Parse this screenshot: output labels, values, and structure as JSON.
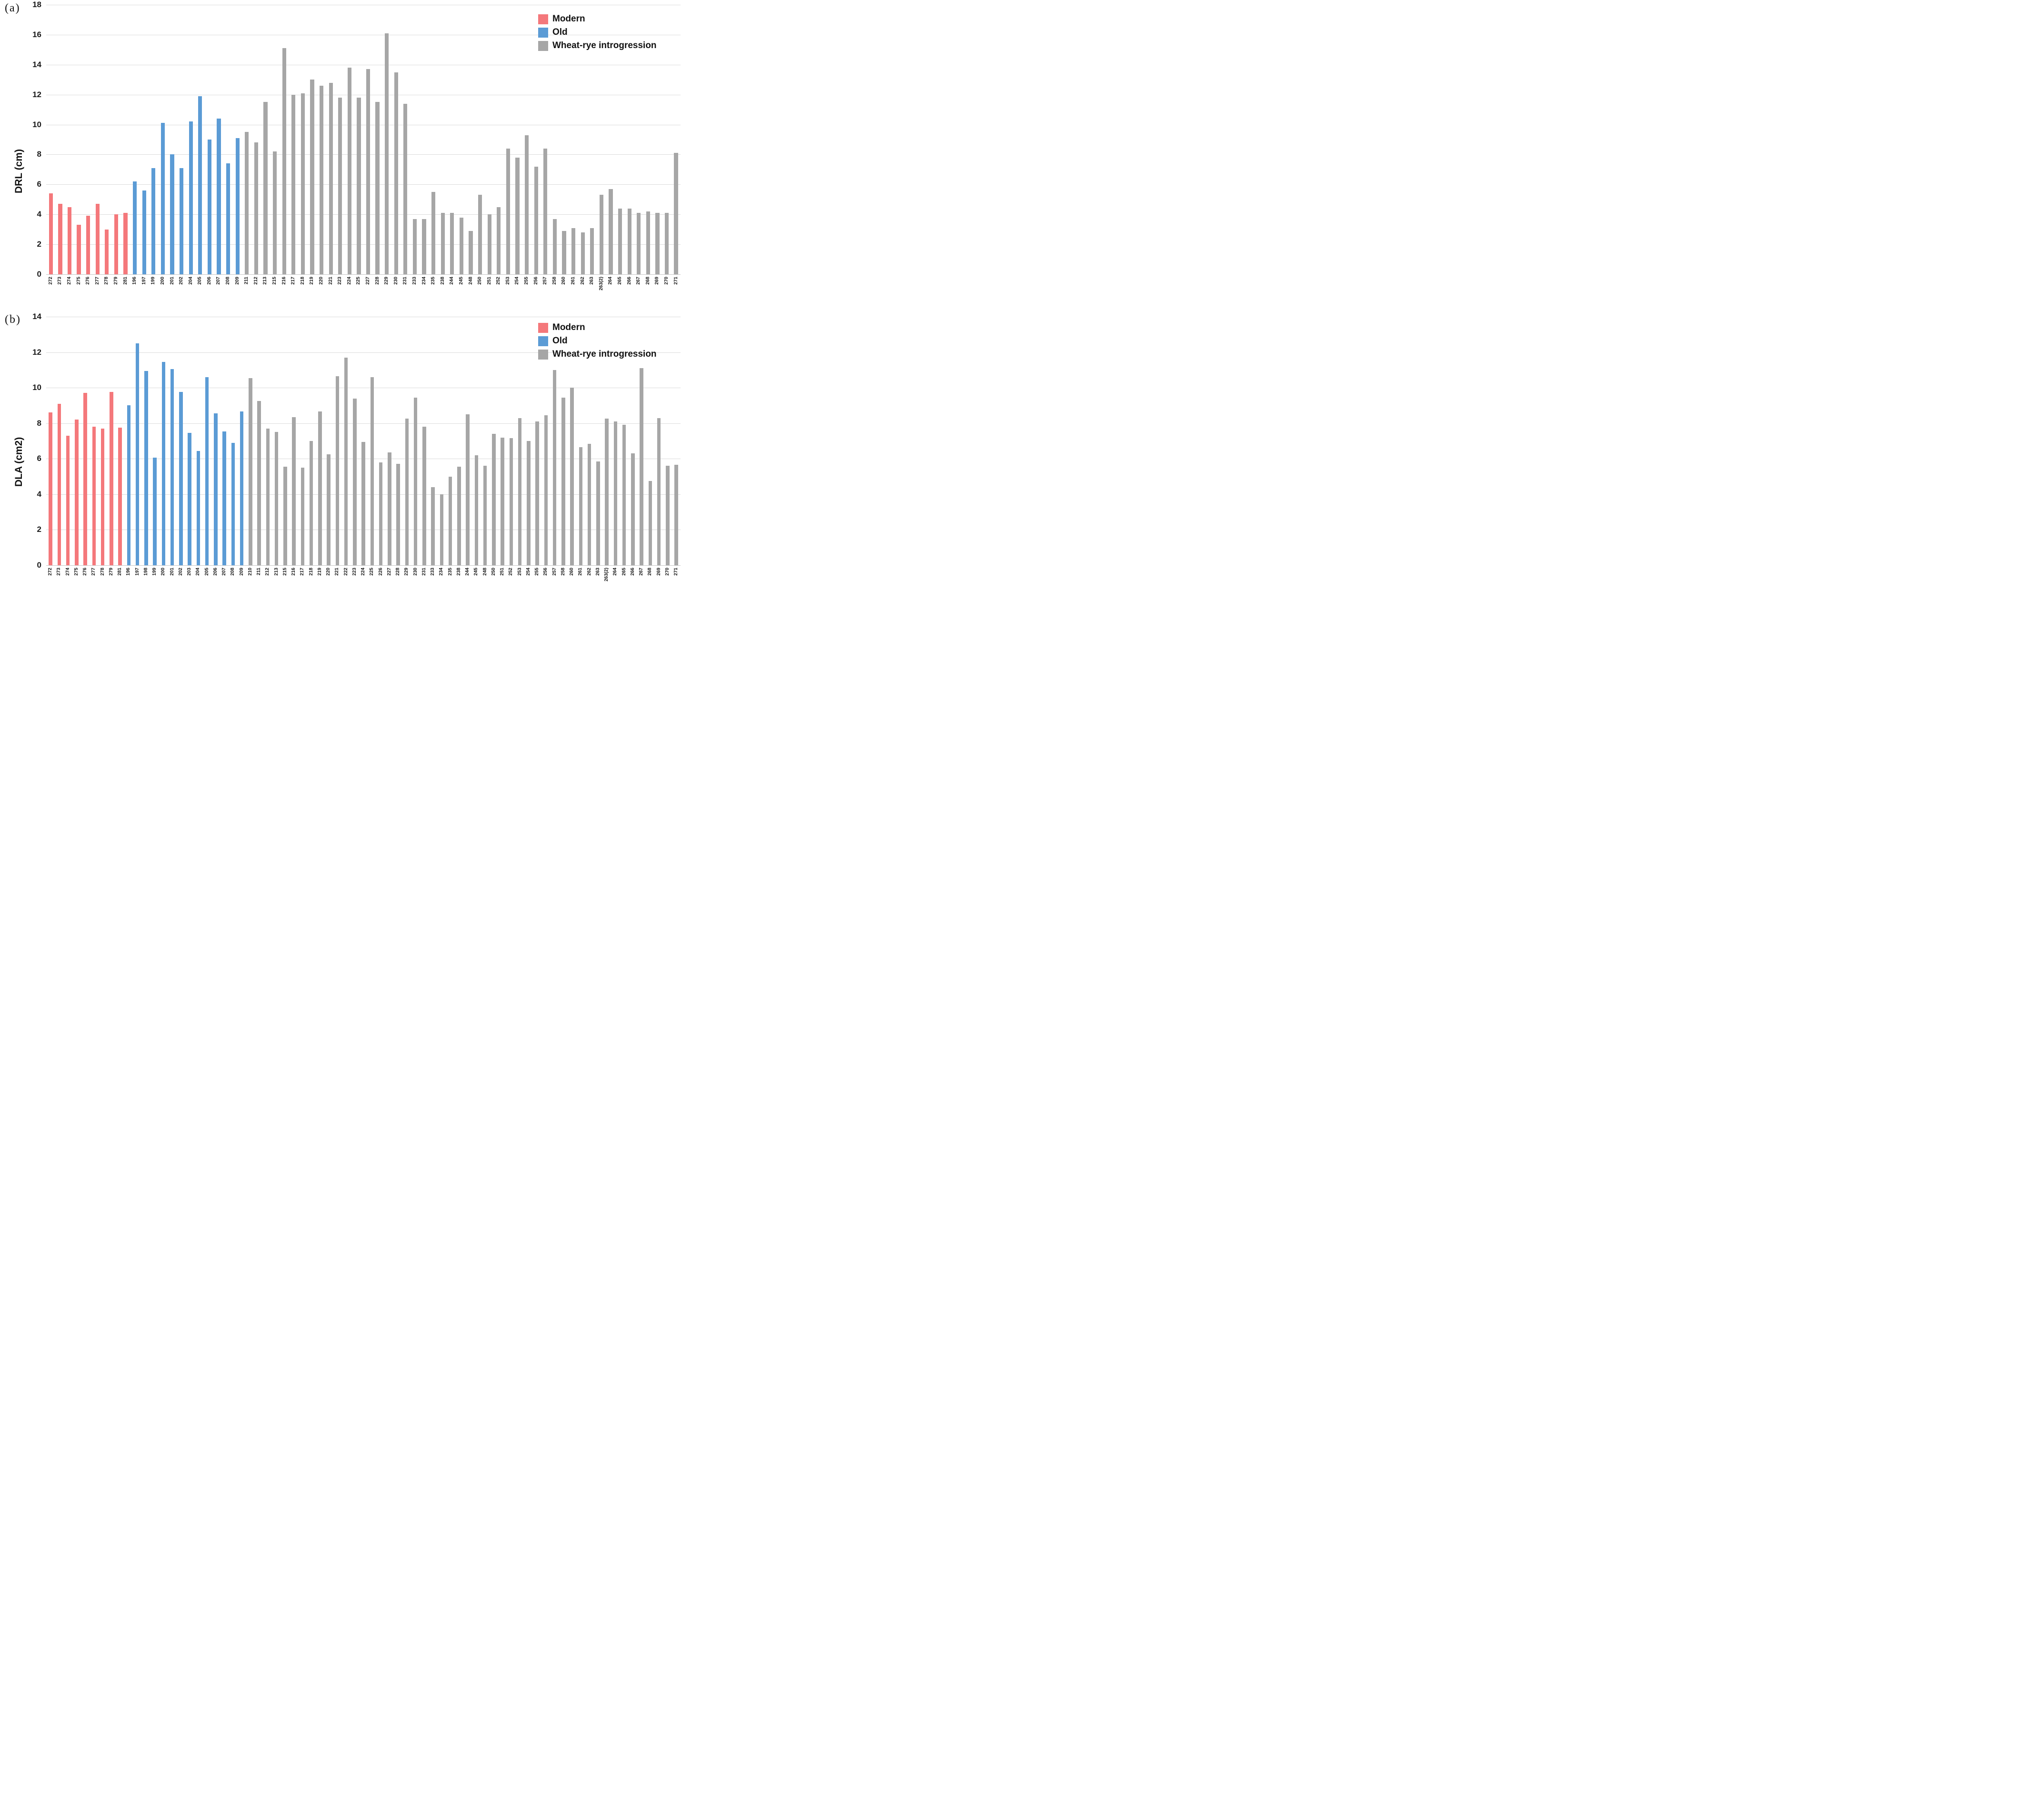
{
  "legend": {
    "items": [
      {
        "key": "modern",
        "label": "Modern",
        "color": "#F4787B"
      },
      {
        "key": "old",
        "label": "Old",
        "color": "#5B9BD5"
      },
      {
        "key": "introgression",
        "label": "Wheat-rye introgression",
        "color": "#A6A6A6"
      }
    ]
  },
  "chart_data": [
    {
      "type": "bar",
      "panel_label": "(a)",
      "ylabel": "DRL (cm)",
      "ylim": [
        0,
        18
      ],
      "ytick_step": 2,
      "grid": true,
      "legend_position": "top-right",
      "categories": [
        "272",
        "273",
        "274",
        "275",
        "276",
        "277",
        "278",
        "279",
        "281",
        "196",
        "197",
        "199",
        "200",
        "201",
        "202",
        "204",
        "205",
        "206",
        "207",
        "208",
        "209",
        "211",
        "212",
        "213",
        "215",
        "216",
        "217",
        "218",
        "219",
        "220",
        "221",
        "223",
        "224",
        "225",
        "227",
        "228",
        "229",
        "230",
        "231",
        "233",
        "234",
        "235",
        "238",
        "244",
        "245",
        "248",
        "250",
        "251",
        "252",
        "253",
        "254",
        "255",
        "256",
        "257",
        "258",
        "260",
        "261",
        "262",
        "263",
        "263(2)",
        "264",
        "265",
        "266",
        "267",
        "268",
        "269",
        "270",
        "271"
      ],
      "groups": [
        "modern",
        "modern",
        "modern",
        "modern",
        "modern",
        "modern",
        "modern",
        "modern",
        "modern",
        "old",
        "old",
        "old",
        "old",
        "old",
        "old",
        "old",
        "old",
        "old",
        "old",
        "old",
        "old",
        "introgression",
        "introgression",
        "introgression",
        "introgression",
        "introgression",
        "introgression",
        "introgression",
        "introgression",
        "introgression",
        "introgression",
        "introgression",
        "introgression",
        "introgression",
        "introgression",
        "introgression",
        "introgression",
        "introgression",
        "introgression",
        "introgression",
        "introgression",
        "introgression",
        "introgression",
        "introgression",
        "introgression",
        "introgression",
        "introgression",
        "introgression",
        "introgression",
        "introgression",
        "introgression",
        "introgression",
        "introgression",
        "introgression",
        "introgression",
        "introgression",
        "introgression",
        "introgression",
        "introgression",
        "introgression",
        "introgression",
        "introgression",
        "introgression",
        "introgression",
        "introgression",
        "introgression",
        "introgression",
        "introgression"
      ],
      "values": [
        5.4,
        4.7,
        4.5,
        3.3,
        3.9,
        4.7,
        3.0,
        4.0,
        4.1,
        6.2,
        5.6,
        7.1,
        10.1,
        8.0,
        7.1,
        10.2,
        11.9,
        9.0,
        10.4,
        7.4,
        9.1,
        9.5,
        8.8,
        11.5,
        8.2,
        15.1,
        12.0,
        12.1,
        13.0,
        12.6,
        12.8,
        11.8,
        13.8,
        11.8,
        13.7,
        11.5,
        16.1,
        13.5,
        11.4,
        3.7,
        3.7,
        5.5,
        4.1,
        4.1,
        3.8,
        2.9,
        5.3,
        4.0,
        4.5,
        8.4,
        7.8,
        9.3,
        7.2,
        8.4,
        3.7,
        2.9,
        3.1,
        2.8,
        3.1,
        5.3,
        5.7,
        4.4,
        4.4,
        4.1,
        4.2,
        4.1,
        4.1,
        8.1
      ]
    },
    {
      "type": "bar",
      "panel_label": "(b)",
      "ylabel": "DLA (cm2)",
      "ylim": [
        0,
        14
      ],
      "ytick_step": 2,
      "grid": true,
      "legend_position": "top-right",
      "categories": [
        "272",
        "273",
        "274",
        "275",
        "276",
        "277",
        "278",
        "279",
        "281",
        "196",
        "197",
        "198",
        "199",
        "200",
        "201",
        "202",
        "203",
        "204",
        "205",
        "206",
        "207",
        "208",
        "209",
        "210",
        "211",
        "212",
        "213",
        "215",
        "216",
        "217",
        "218",
        "219",
        "220",
        "221",
        "222",
        "223",
        "224",
        "225",
        "226",
        "227",
        "228",
        "229",
        "230",
        "231",
        "233",
        "234",
        "235",
        "238",
        "244",
        "245",
        "248",
        "250",
        "251",
        "252",
        "253",
        "254",
        "255",
        "256",
        "257",
        "258",
        "260",
        "261",
        "262",
        "263",
        "263(2)",
        "264",
        "265",
        "266",
        "267",
        "268",
        "269",
        "270",
        "271"
      ],
      "groups": [
        "modern",
        "modern",
        "modern",
        "modern",
        "modern",
        "modern",
        "modern",
        "modern",
        "modern",
        "old",
        "old",
        "old",
        "old",
        "old",
        "old",
        "old",
        "old",
        "old",
        "old",
        "old",
        "old",
        "old",
        "old",
        "introgression",
        "introgression",
        "introgression",
        "introgression",
        "introgression",
        "introgression",
        "introgression",
        "introgression",
        "introgression",
        "introgression",
        "introgression",
        "introgression",
        "introgression",
        "introgression",
        "introgression",
        "introgression",
        "introgression",
        "introgression",
        "introgression",
        "introgression",
        "introgression",
        "introgression",
        "introgression",
        "introgression",
        "introgression",
        "introgression",
        "introgression",
        "introgression",
        "introgression",
        "introgression",
        "introgression",
        "introgression",
        "introgression",
        "introgression",
        "introgression",
        "introgression",
        "introgression",
        "introgression",
        "introgression",
        "introgression",
        "introgression",
        "introgression",
        "introgression",
        "introgression",
        "introgression",
        "introgression",
        "introgression",
        "introgression",
        "introgression",
        "introgression"
      ],
      "values": [
        8.6,
        9.1,
        7.3,
        8.2,
        9.7,
        7.8,
        7.7,
        9.75,
        7.75,
        9.0,
        12.5,
        10.95,
        6.05,
        11.45,
        11.05,
        9.75,
        7.45,
        6.45,
        10.6,
        8.55,
        7.55,
        6.9,
        8.65,
        10.55,
        9.25,
        7.7,
        7.5,
        5.55,
        8.35,
        5.5,
        7.0,
        8.65,
        6.25,
        10.65,
        11.7,
        9.4,
        6.95,
        10.6,
        5.8,
        6.35,
        5.7,
        8.25,
        9.45,
        7.8,
        4.4,
        4.0,
        5.0,
        5.55,
        8.5,
        6.2,
        5.6,
        7.4,
        7.2,
        7.15,
        8.3,
        7.0,
        8.1,
        8.45,
        11.0,
        9.45,
        10.0,
        6.65,
        6.85,
        5.85,
        8.25,
        8.1,
        7.9,
        6.3,
        11.1,
        4.75,
        8.3,
        5.6,
        5.65
      ]
    }
  ]
}
